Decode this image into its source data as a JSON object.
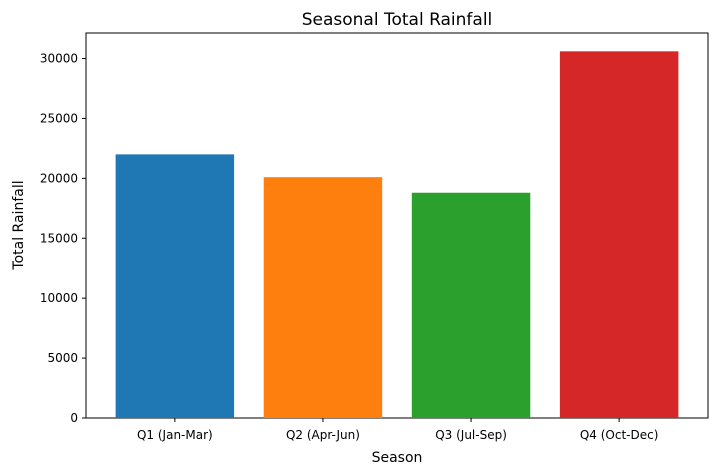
{
  "chart_data": {
    "type": "bar",
    "title": "Seasonal Total Rainfall",
    "xlabel": "Season",
    "ylabel": "Total Rainfall",
    "categories": [
      "Q1 (Jan-Mar)",
      "Q2 (Apr-Jun)",
      "Q3 (Jul-Sep)",
      "Q4 (Oct-Dec)"
    ],
    "values": [
      22000,
      20100,
      18800,
      30600
    ],
    "colors": [
      "#1f77b4",
      "#ff7f0e",
      "#2ca02c",
      "#d62728"
    ],
    "ylim": [
      0,
      32130
    ],
    "yticks": [
      0,
      5000,
      10000,
      15000,
      20000,
      25000,
      30000
    ],
    "grid": false,
    "legend": "none"
  }
}
